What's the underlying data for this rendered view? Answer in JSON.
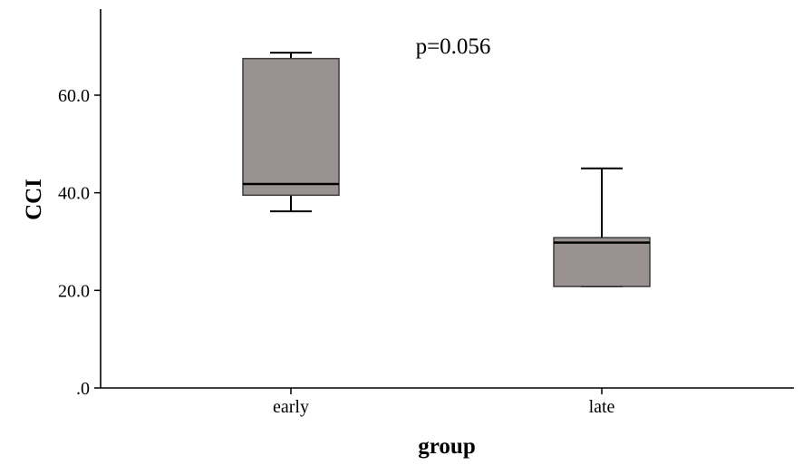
{
  "chart_data": {
    "type": "box",
    "xlabel": "group",
    "ylabel": "CCI",
    "ylim": [
      0,
      77
    ],
    "yticks": [
      {
        "value": 0,
        "label": ".0"
      },
      {
        "value": 20,
        "label": "20.0"
      },
      {
        "value": 40,
        "label": "40.0"
      },
      {
        "value": 60,
        "label": "60.0"
      }
    ],
    "categories": [
      "early",
      "late"
    ],
    "boxes": [
      {
        "category": "early",
        "whisker_low": 36.2,
        "q1": 39.5,
        "median": 41.8,
        "q3": 67.5,
        "whisker_high": 68.7
      },
      {
        "category": "late",
        "whisker_low": 20.8,
        "q1": 20.8,
        "median": 29.8,
        "q3": 30.8,
        "whisker_high": 45.0
      }
    ],
    "annotation": "p=0.056",
    "grid": false,
    "legend": "none",
    "box_fill": "#9a9290",
    "box_stroke": "#3a3a3a",
    "line_color": "#000000"
  }
}
